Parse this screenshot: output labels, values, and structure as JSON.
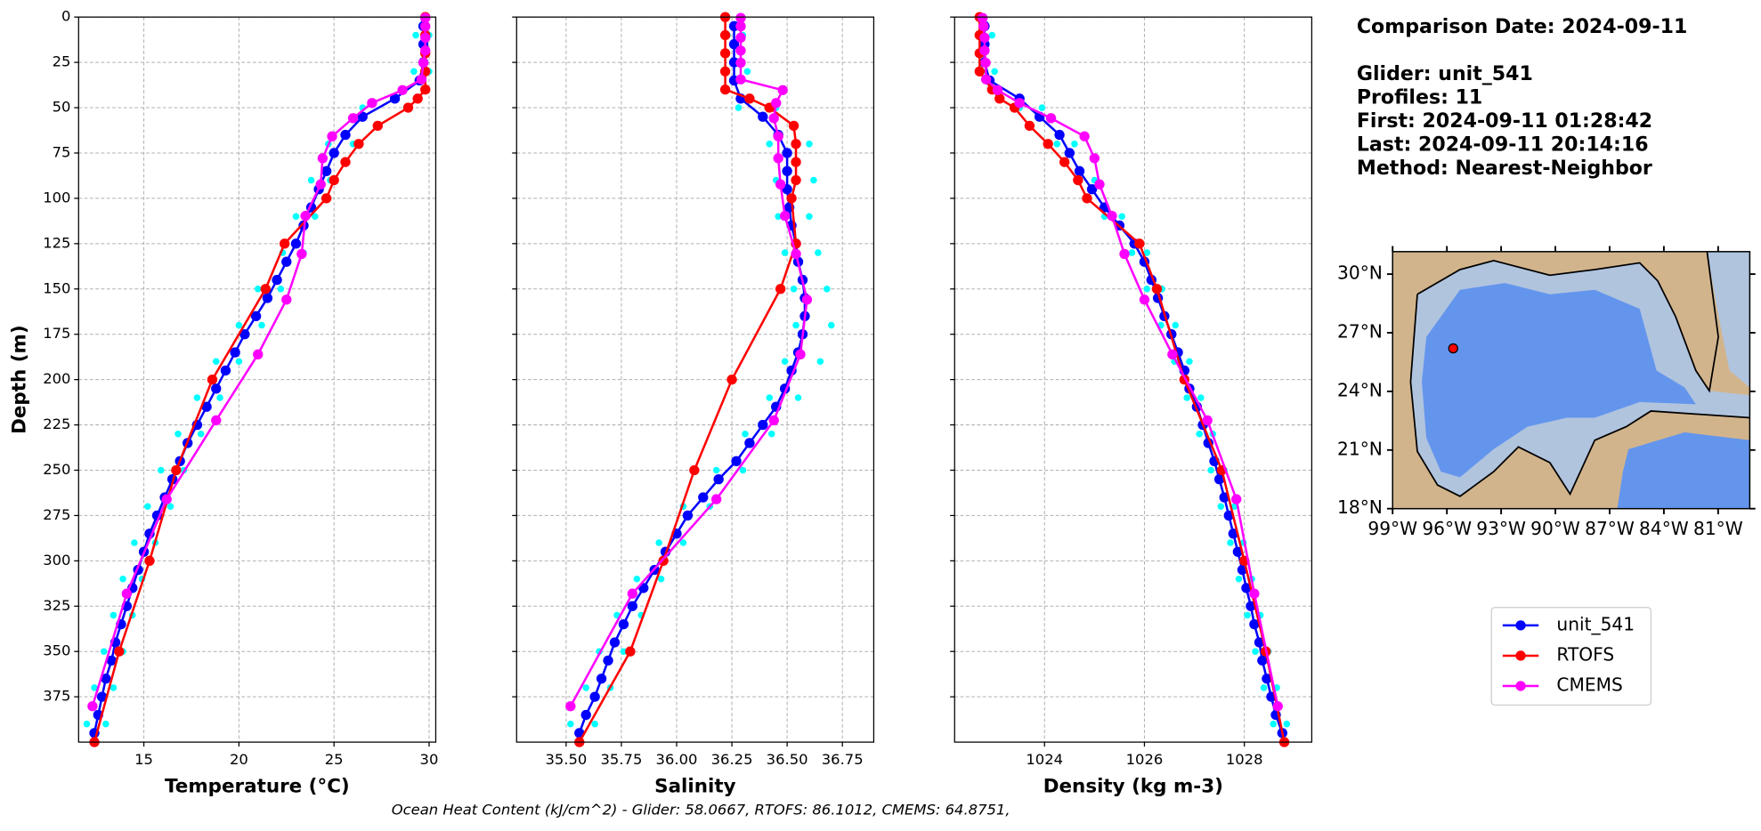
{
  "chart_data": [
    {
      "type": "line",
      "xlabel": "Temperature (°C)",
      "ylabel": "Depth (m)",
      "ytick_labels": true,
      "grid": true,
      "xlim": [
        11.57,
        30.35
      ],
      "ylim": [
        400,
        0
      ],
      "xticks": [
        15,
        20,
        25,
        30
      ],
      "yticks": [
        0,
        25,
        50,
        75,
        100,
        125,
        150,
        175,
        200,
        225,
        250,
        275,
        300,
        325,
        350,
        375
      ],
      "series": [
        {
          "color": "#00ffff",
          "marker_only": true,
          "x": [
            29.3,
            29.2,
            26.5,
            24.7,
            23.8,
            23.0,
            22.3,
            21.0,
            20.0,
            18.8,
            17.8,
            16.8,
            15.9,
            15.2,
            14.5,
            13.9,
            13.4,
            12.9,
            12.4,
            12.0,
            30.0,
            30.0,
            28.8,
            26.0,
            24.8,
            24.0,
            23.4,
            22.2,
            21.2,
            20.0,
            19.0,
            18.0,
            17.1,
            16.4,
            15.6,
            14.9,
            14.4,
            13.9,
            13.4,
            13.0
          ],
          "y": [
            10,
            30,
            50,
            70,
            90,
            110,
            130,
            150,
            170,
            190,
            210,
            230,
            250,
            270,
            290,
            310,
            330,
            350,
            370,
            390,
            10,
            30,
            50,
            70,
            90,
            110,
            130,
            150,
            170,
            190,
            210,
            230,
            250,
            270,
            290,
            310,
            330,
            350,
            370,
            390
          ]
        },
        {
          "name": "unit_541",
          "color": "#0000ff",
          "x": [
            29.7,
            29.7,
            29.7,
            29.5,
            28.2,
            26.5,
            25.6,
            25.0,
            24.6,
            24.2,
            23.8,
            23.4,
            23.0,
            22.5,
            22.0,
            21.5,
            20.9,
            20.3,
            19.8,
            19.3,
            18.8,
            18.3,
            17.8,
            17.3,
            16.9,
            16.5,
            16.1,
            15.7,
            15.3,
            15.0,
            14.7,
            14.4,
            14.1,
            13.8,
            13.5,
            13.3,
            13.0,
            12.8,
            12.6,
            12.4
          ],
          "y": [
            5,
            15,
            25,
            35,
            45,
            55,
            65,
            75,
            85,
            95,
            105,
            115,
            125,
            135,
            145,
            155,
            165,
            175,
            185,
            195,
            205,
            215,
            225,
            235,
            245,
            255,
            265,
            275,
            285,
            295,
            305,
            315,
            325,
            335,
            345,
            355,
            365,
            375,
            385,
            395
          ]
        },
        {
          "name": "RTOFS",
          "color": "#ff0000",
          "x": [
            29.8,
            29.8,
            29.8,
            29.8,
            29.8,
            29.4,
            28.9,
            27.3,
            26.3,
            25.6,
            25.0,
            24.6,
            22.4,
            21.4,
            18.6,
            16.7,
            15.3,
            13.7,
            12.4
          ],
          "y": [
            0,
            10,
            20,
            30,
            40,
            45,
            50,
            60,
            70,
            80,
            90,
            100,
            125,
            150,
            200,
            250,
            300,
            350,
            400
          ]
        },
        {
          "name": "CMEMS",
          "color": "#ff00ff",
          "x": [
            29.8,
            29.8,
            29.8,
            29.8,
            29.7,
            29.6,
            28.6,
            27.0,
            26.0,
            24.9,
            24.4,
            24.3,
            23.5,
            23.3,
            22.5,
            21.0,
            18.8,
            16.2,
            14.1,
            12.3
          ],
          "y": [
            0.5,
            5.1,
            11.4,
            18.5,
            25.2,
            34.4,
            40.3,
            47.4,
            55.8,
            65.8,
            77.9,
            92.3,
            109.7,
            130.7,
            155.9,
            186.1,
            222.5,
            266.0,
            318.1,
            380.2
          ]
        }
      ]
    },
    {
      "type": "line",
      "xlabel": "Salinity",
      "ytick_labels": false,
      "grid": true,
      "xlim": [
        35.276,
        36.892
      ],
      "ylim": [
        400,
        0
      ],
      "xticks": [
        {
          "value": 35.5,
          "label": "35.50"
        },
        35.75,
        {
          "value": 36.0,
          "label": "36.00"
        },
        36.25,
        {
          "value": 36.5,
          "label": "36.50"
        },
        36.75
      ],
      "yticks": [
        0,
        25,
        50,
        75,
        100,
        125,
        150,
        175,
        200,
        225,
        250,
        275,
        300,
        325,
        350,
        375
      ],
      "series": [
        {
          "color": "#00ffff",
          "marker_only": true,
          "x": [
            36.23,
            36.22,
            36.28,
            36.42,
            36.45,
            36.46,
            36.49,
            36.53,
            36.54,
            36.49,
            36.42,
            36.31,
            36.18,
            36.03,
            35.92,
            35.82,
            35.73,
            35.65,
            35.59,
            35.52,
            36.3,
            36.32,
            36.45,
            36.6,
            36.62,
            36.6,
            36.64,
            36.68,
            36.7,
            36.65,
            36.55,
            36.43,
            36.3,
            36.15,
            36.03,
            35.93,
            35.84,
            35.76,
            35.7,
            35.63
          ],
          "y": [
            10,
            30,
            50,
            70,
            90,
            110,
            130,
            150,
            170,
            190,
            210,
            230,
            250,
            270,
            290,
            310,
            330,
            350,
            370,
            390,
            10,
            30,
            50,
            70,
            90,
            110,
            130,
            150,
            170,
            190,
            210,
            230,
            250,
            270,
            290,
            310,
            330,
            350,
            370,
            390
          ]
        },
        {
          "color": "#0000ff",
          "x": [
            36.26,
            36.26,
            36.26,
            36.26,
            36.29,
            36.39,
            36.46,
            36.5,
            36.5,
            36.5,
            36.51,
            36.52,
            36.54,
            36.55,
            36.57,
            36.58,
            36.58,
            36.57,
            36.55,
            36.52,
            36.49,
            36.45,
            36.39,
            36.33,
            36.27,
            36.19,
            36.12,
            36.05,
            36.0,
            35.95,
            35.9,
            35.85,
            35.8,
            35.76,
            35.72,
            35.69,
            35.66,
            35.63,
            35.59,
            35.56
          ],
          "y": [
            5,
            15,
            25,
            35,
            45,
            55,
            65,
            75,
            85,
            95,
            105,
            115,
            125,
            135,
            145,
            155,
            165,
            175,
            185,
            195,
            205,
            215,
            225,
            235,
            245,
            255,
            265,
            275,
            285,
            295,
            305,
            315,
            325,
            335,
            345,
            355,
            365,
            375,
            385,
            395
          ]
        },
        {
          "color": "#ff0000",
          "x": [
            36.22,
            36.22,
            36.22,
            36.22,
            36.22,
            36.33,
            36.42,
            36.53,
            36.54,
            36.54,
            36.54,
            36.52,
            36.54,
            36.47,
            36.25,
            36.08,
            35.94,
            35.79,
            35.56
          ],
          "y": [
            0,
            10,
            20,
            30,
            40,
            45,
            50,
            60,
            70,
            80,
            90,
            100,
            125,
            150,
            200,
            250,
            300,
            350,
            400
          ]
        },
        {
          "color": "#ff00ff",
          "x": [
            36.29,
            36.29,
            36.29,
            36.29,
            36.29,
            36.29,
            36.48,
            36.45,
            36.44,
            36.46,
            36.46,
            36.47,
            36.49,
            36.54,
            36.59,
            36.56,
            36.44,
            36.18,
            35.8,
            35.52
          ],
          "y": [
            0.5,
            5.1,
            11.4,
            18.5,
            25.2,
            34.4,
            40.3,
            47.4,
            55.8,
            65.8,
            77.9,
            92.3,
            109.7,
            130.7,
            155.9,
            186.1,
            222.5,
            266.0,
            318.1,
            380.2
          ]
        }
      ]
    },
    {
      "type": "line",
      "xlabel": "Density (kg m-3)",
      "ytick_labels": false,
      "grid": true,
      "xlim": [
        1022.2,
        1029.35
      ],
      "ylim": [
        400,
        0
      ],
      "xticks": [
        1024,
        1026,
        1028
      ],
      "yticks": [
        0,
        25,
        50,
        75,
        100,
        125,
        150,
        175,
        200,
        225,
        250,
        275,
        300,
        325,
        350,
        375
      ],
      "series": [
        {
          "color": "#00ffff",
          "marker_only": true,
          "x": [
            1022.7,
            1022.75,
            1023.5,
            1024.25,
            1024.65,
            1025.2,
            1025.75,
            1026.05,
            1026.33,
            1026.6,
            1026.85,
            1027.1,
            1027.33,
            1027.53,
            1027.72,
            1027.89,
            1028.06,
            1028.22,
            1028.39,
            1028.58,
            1022.95,
            1023.0,
            1023.95,
            1024.6,
            1025.0,
            1025.55,
            1026.05,
            1026.35,
            1026.62,
            1026.9,
            1027.13,
            1027.37,
            1027.6,
            1027.8,
            1027.98,
            1028.15,
            1028.32,
            1028.48,
            1028.65,
            1028.85
          ],
          "y": [
            10,
            30,
            50,
            70,
            90,
            110,
            130,
            150,
            170,
            190,
            210,
            230,
            250,
            270,
            290,
            310,
            330,
            350,
            370,
            390,
            10,
            30,
            50,
            70,
            90,
            110,
            130,
            150,
            170,
            190,
            210,
            230,
            250,
            270,
            290,
            310,
            330,
            350,
            370,
            390
          ]
        },
        {
          "color": "#0000ff",
          "x": [
            1022.8,
            1022.8,
            1022.8,
            1022.9,
            1023.5,
            1023.9,
            1024.3,
            1024.5,
            1024.7,
            1024.95,
            1025.2,
            1025.5,
            1025.8,
            1026.0,
            1026.14,
            1026.27,
            1026.4,
            1026.54,
            1026.67,
            1026.8,
            1026.9,
            1027.05,
            1027.17,
            1027.28,
            1027.4,
            1027.5,
            1027.6,
            1027.69,
            1027.78,
            1027.87,
            1027.96,
            1028.04,
            1028.13,
            1028.2,
            1028.3,
            1028.36,
            1028.45,
            1028.54,
            1028.63,
            1028.76
          ],
          "y": [
            5,
            15,
            25,
            35,
            45,
            55,
            65,
            75,
            85,
            95,
            105,
            115,
            125,
            135,
            145,
            155,
            165,
            175,
            185,
            195,
            205,
            215,
            225,
            235,
            245,
            255,
            265,
            275,
            285,
            295,
            305,
            315,
            325,
            335,
            345,
            355,
            365,
            375,
            385,
            395
          ]
        },
        {
          "color": "#ff0000",
          "x": [
            1022.7,
            1022.7,
            1022.7,
            1022.7,
            1022.95,
            1023.1,
            1023.4,
            1023.7,
            1024.07,
            1024.4,
            1024.67,
            1024.85,
            1025.9,
            1026.25,
            1026.8,
            1027.55,
            1028.0,
            1028.43,
            1028.8
          ],
          "y": [
            0,
            10,
            20,
            30,
            40,
            45,
            50,
            60,
            70,
            80,
            90,
            100,
            125,
            150,
            200,
            250,
            300,
            350,
            400
          ]
        },
        {
          "color": "#ff00ff",
          "x": [
            1022.76,
            1022.78,
            1022.8,
            1022.8,
            1022.82,
            1022.83,
            1023.06,
            1023.5,
            1024.13,
            1024.8,
            1025.0,
            1025.1,
            1025.35,
            1025.6,
            1026.0,
            1026.56,
            1027.26,
            1027.84,
            1028.2,
            1028.67
          ],
          "y": [
            0.5,
            5.1,
            11.4,
            18.5,
            25.2,
            34.4,
            40.3,
            47.4,
            55.8,
            65.8,
            77.9,
            92.3,
            109.7,
            130.7,
            155.9,
            186.1,
            222.5,
            266.0,
            318.1,
            380.2
          ]
        }
      ]
    }
  ],
  "info": [
    "Comparison Date: 2024-09-11",
    "Glider: unit_541",
    "Profiles: 11",
    "First: 2024-09-11 01:28:42",
    "Last: 2024-09-11 20:14:16",
    "Method: Nearest-Neighbor"
  ],
  "footer": "Ocean Heat Content (kJ/cm^2) - Glider: 58.0667,  RTOFS: 86.1012,  CMEMS: 64.8751,",
  "map": {
    "xlim": [
      -99,
      -79.25
    ],
    "ylim": [
      18,
      31.15
    ],
    "xticks": [
      {
        "value": -99,
        "label": "99°W"
      },
      {
        "value": -96,
        "label": "96°W"
      },
      {
        "value": -93,
        "label": "93°W"
      },
      {
        "value": -90,
        "label": "90°W"
      },
      {
        "value": -87,
        "label": "87°W"
      },
      {
        "value": -84,
        "label": "84°W"
      },
      {
        "value": -81,
        "label": "81°W"
      }
    ],
    "yticks": [
      {
        "value": 18,
        "label": "18°N"
      },
      {
        "value": 21,
        "label": "21°N"
      },
      {
        "value": 24,
        "label": "24°N"
      },
      {
        "value": 27,
        "label": "27°N"
      },
      {
        "value": 30,
        "label": "30°N"
      }
    ],
    "marker": {
      "lon": -95.65,
      "lat": 26.2,
      "color": "#ff0000"
    }
  }
}
